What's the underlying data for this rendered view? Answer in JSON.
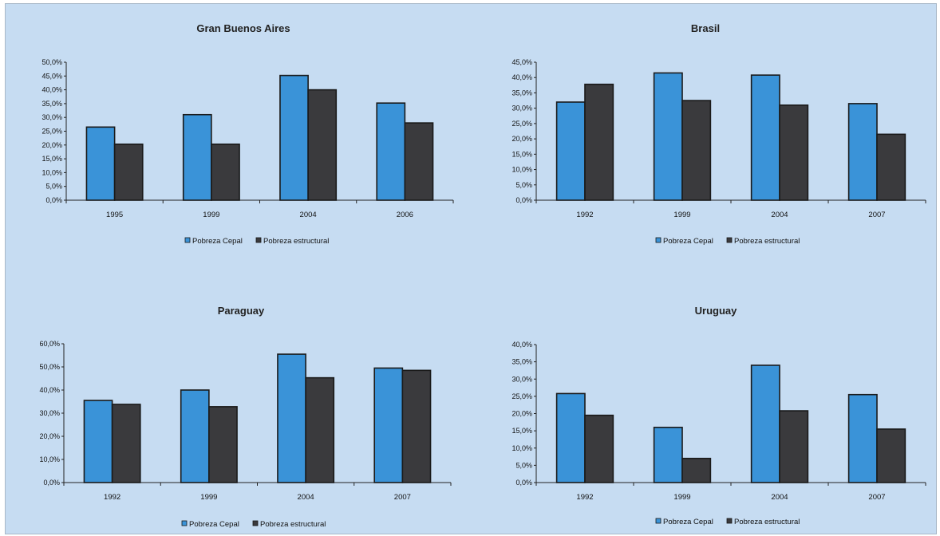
{
  "legend_colors": {
    "Pobreza Cepal": "#3a93d8",
    "Pobreza estructural": "#3a3a3d"
  },
  "chart_data": [
    {
      "type": "bar",
      "title": "Gran Buenos Aires",
      "categories": [
        "1995",
        "1999",
        "2004",
        "2006"
      ],
      "series": [
        {
          "name": "Pobreza Cepal",
          "values": [
            26.5,
            31.0,
            45.2,
            35.2
          ]
        },
        {
          "name": "Pobreza estructural",
          "values": [
            20.3,
            20.3,
            40.0,
            28.0
          ]
        }
      ],
      "ylim": [
        0,
        50
      ],
      "yticks": [
        0,
        5,
        10,
        15,
        20,
        25,
        30,
        35,
        40,
        45,
        50
      ],
      "ytick_labels": [
        "0,0%",
        "5,0%",
        "10,0%",
        "15,0%",
        "20,0%",
        "25,0%",
        "30,0%",
        "35,0%",
        "40,0%",
        "45,0%",
        "50,0%"
      ],
      "legend": "bottom"
    },
    {
      "type": "bar",
      "title": "Brasil",
      "categories": [
        "1992",
        "1999",
        "2004",
        "2007"
      ],
      "series": [
        {
          "name": "Pobreza Cepal",
          "values": [
            32.0,
            41.5,
            40.8,
            31.5
          ]
        },
        {
          "name": "Pobreza estructural",
          "values": [
            37.8,
            32.5,
            31.0,
            21.5
          ]
        }
      ],
      "ylim": [
        0,
        45
      ],
      "yticks": [
        0,
        5,
        10,
        15,
        20,
        25,
        30,
        35,
        40,
        45
      ],
      "ytick_labels": [
        "0,0%",
        "5,0%",
        "10,0%",
        "15,0%",
        "20,0%",
        "25,0%",
        "30,0%",
        "35,0%",
        "40,0%",
        "45,0%"
      ],
      "legend": "bottom"
    },
    {
      "type": "bar",
      "title": "Paraguay",
      "categories": [
        "1992",
        "1999",
        "2004",
        "2007"
      ],
      "series": [
        {
          "name": "Pobreza Cepal",
          "values": [
            35.5,
            40.0,
            55.5,
            49.5
          ]
        },
        {
          "name": "Pobreza estructural",
          "values": [
            33.8,
            32.8,
            45.3,
            48.5
          ]
        }
      ],
      "ylim": [
        0,
        60
      ],
      "yticks": [
        0,
        10,
        20,
        30,
        40,
        50,
        60
      ],
      "ytick_labels": [
        "0,0%",
        "10,0%",
        "20,0%",
        "30,0%",
        "40,0%",
        "50,0%",
        "60,0%"
      ],
      "legend": "bottom"
    },
    {
      "type": "bar",
      "title": "Uruguay",
      "categories": [
        "1992",
        "1999",
        "2004",
        "2007"
      ],
      "series": [
        {
          "name": "Pobreza Cepal",
          "values": [
            25.8,
            16.0,
            34.0,
            25.5
          ]
        },
        {
          "name": "Pobreza estructural",
          "values": [
            19.5,
            7.0,
            20.8,
            15.5
          ]
        }
      ],
      "ylim": [
        0,
        40
      ],
      "yticks": [
        0,
        5,
        10,
        15,
        20,
        25,
        30,
        35,
        40
      ],
      "ytick_labels": [
        "0,0%",
        "5,0%",
        "10,0%",
        "15,0%",
        "20,0%",
        "25,0%",
        "30,0%",
        "35,0%",
        "40,0%"
      ],
      "legend": "bottom"
    }
  ]
}
